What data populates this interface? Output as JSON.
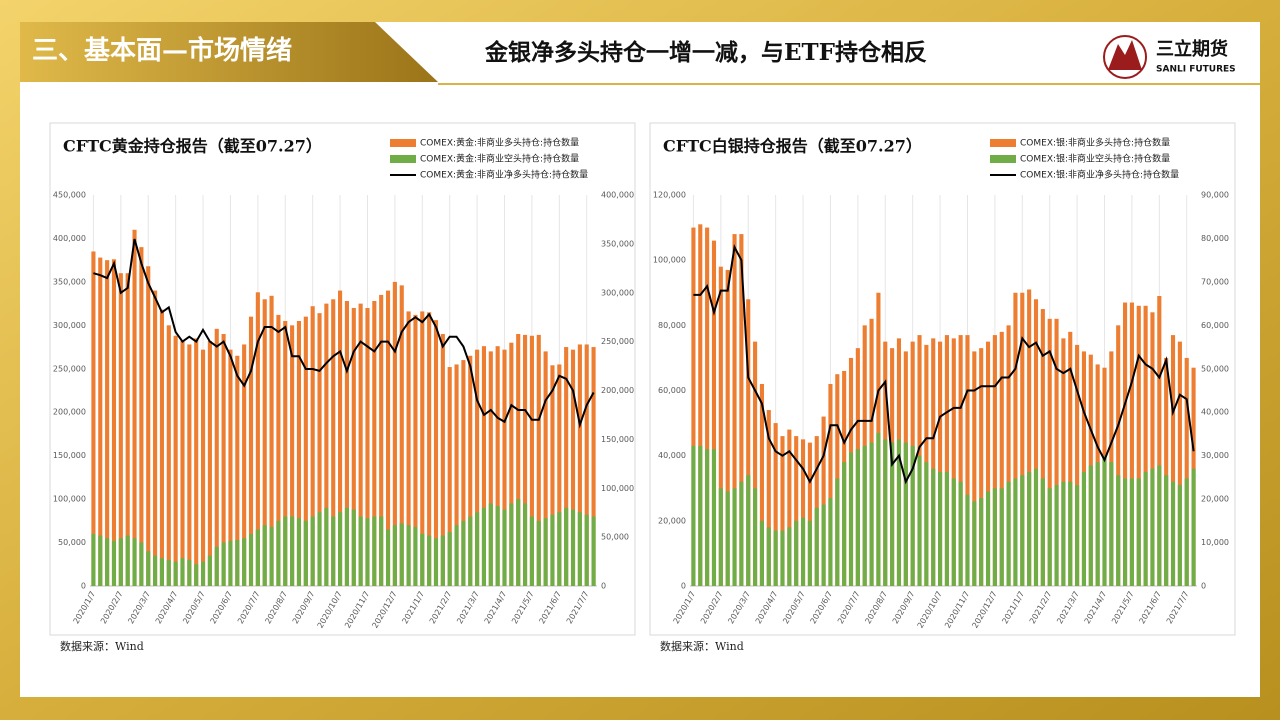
{
  "header": {
    "section": "三、基本面—市场情绪",
    "title": "金银净多头持仓一增一减，与ETF持仓相反",
    "logo": "三立期货",
    "logo_sub": "SANLI FUTURES"
  },
  "chart_data": [
    {
      "type": "bar",
      "title": "CFTC黄金持仓报告（截至07.27）",
      "note": "数据来源：Wind",
      "grid": "x",
      "categories": [
        "2020/1/7",
        null,
        null,
        null,
        "2020/2/7",
        null,
        null,
        null,
        "2020/3/7",
        null,
        null,
        null,
        "2020/4/7",
        null,
        null,
        null,
        "2020/5/7",
        null,
        null,
        null,
        "2020/6/7",
        null,
        null,
        null,
        "2020/7/7",
        null,
        null,
        null,
        "2020/8/7",
        null,
        null,
        null,
        "2020/9/7",
        null,
        null,
        null,
        "2020/10/7",
        null,
        null,
        null,
        "2020/11/7",
        null,
        null,
        null,
        "2020/12/7",
        null,
        null,
        null,
        "2021/1/7",
        null,
        null,
        null,
        "2021/2/7",
        null,
        null,
        null,
        "2021/3/7",
        null,
        null,
        null,
        "2021/4/7",
        null,
        null,
        null,
        "2021/5/7",
        null,
        null,
        null,
        "2021/6/7",
        null,
        null,
        null,
        "2021/7/7",
        null
      ],
      "ylim": [
        0,
        450000
      ],
      "yticks": [
        0,
        {
          "value": 50000,
          "label": "50,000"
        },
        {
          "value": 100000,
          "label": "100,000"
        },
        {
          "value": 150000,
          "label": "150,000"
        },
        {
          "value": 200000,
          "label": "200,000"
        },
        {
          "value": 250000,
          "label": "250,000"
        },
        {
          "value": 300000,
          "label": "300,000"
        },
        {
          "value": 350000,
          "label": "350,000"
        },
        {
          "value": 400000,
          "label": "400,000"
        },
        {
          "value": 450000,
          "label": "450,000"
        }
      ],
      "y2lim": [
        0,
        400000
      ],
      "y2ticks": [
        0,
        {
          "value": 50000,
          "label": "50,000"
        },
        {
          "value": 100000,
          "label": "100,000"
        },
        {
          "value": 150000,
          "label": "150,000"
        },
        {
          "value": 200000,
          "label": "200,000"
        },
        {
          "value": 250000,
          "label": "250,000"
        },
        {
          "value": 300000,
          "label": "300,000"
        },
        {
          "value": 350000,
          "label": "350,000"
        },
        {
          "value": 400000,
          "label": "400,000"
        }
      ],
      "series": [
        {
          "name": "COMEX:黄金:非商业多头持仓:持仓数量",
          "type": "bar",
          "color": "#ed7d31",
          "values": [
            385000,
            378000,
            375000,
            376000,
            360000,
            360000,
            410000,
            390000,
            368000,
            340000,
            318000,
            300000,
            288000,
            282000,
            278000,
            285000,
            272000,
            282000,
            296000,
            290000,
            272000,
            265000,
            278000,
            310000,
            338000,
            330000,
            334000,
            312000,
            305000,
            300000,
            305000,
            310000,
            322000,
            314000,
            325000,
            330000,
            340000,
            328000,
            320000,
            325000,
            320000,
            328000,
            335000,
            340000,
            350000,
            346000,
            316000,
            312000,
            316000,
            315000,
            306000,
            290000,
            252000,
            255000,
            260000,
            265000,
            272000,
            276000,
            270000,
            276000,
            272000,
            280000,
            290000,
            289000,
            288000,
            289000,
            270000,
            254000,
            255000,
            275000,
            272000,
            278000,
            278000,
            275000
          ]
        },
        {
          "name": "COMEX:黄金:非商业空头持仓:持仓数量",
          "type": "bar",
          "color": "#70ad47",
          "values": [
            60000,
            58000,
            55000,
            52000,
            55000,
            58000,
            55000,
            50000,
            40000,
            35000,
            32000,
            30000,
            28000,
            32000,
            30000,
            25000,
            28000,
            35000,
            45000,
            50000,
            52000,
            53000,
            55000,
            60000,
            65000,
            70000,
            68000,
            75000,
            80000,
            80000,
            78000,
            75000,
            80000,
            85000,
            90000,
            80000,
            85000,
            90000,
            88000,
            80000,
            78000,
            80000,
            80000,
            65000,
            70000,
            72000,
            70000,
            68000,
            60000,
            58000,
            55000,
            58000,
            62000,
            70000,
            75000,
            80000,
            85000,
            90000,
            95000,
            92000,
            88000,
            95000,
            100000,
            95000,
            80000,
            75000,
            78000,
            82000,
            85000,
            90000,
            88000,
            85000,
            82000,
            80000
          ]
        },
        {
          "name": "COMEX:黄金:非商业净多头持仓:持仓数量",
          "type": "line",
          "axis": "y2",
          "color": "#000000",
          "values": [
            320000,
            318000,
            315000,
            330000,
            300000,
            305000,
            355000,
            330000,
            310000,
            295000,
            280000,
            285000,
            260000,
            250000,
            255000,
            250000,
            262000,
            250000,
            245000,
            250000,
            235000,
            215000,
            205000,
            220000,
            250000,
            265000,
            265000,
            260000,
            265000,
            235000,
            235000,
            222000,
            222000,
            220000,
            228000,
            235000,
            240000,
            220000,
            240000,
            250000,
            245000,
            240000,
            250000,
            250000,
            240000,
            260000,
            270000,
            275000,
            270000,
            278000,
            265000,
            245000,
            255000,
            255000,
            245000,
            225000,
            190000,
            175000,
            180000,
            172000,
            168000,
            185000,
            180000,
            180000,
            170000,
            170000,
            190000,
            200000,
            215000,
            212000,
            200000,
            165000,
            185000,
            198000
          ]
        }
      ]
    },
    {
      "type": "bar",
      "title": "CFTC白银持仓报告（截至07.27）",
      "note": "数据来源：Wind",
      "grid": "x",
      "categories": [
        "2020/1/7",
        null,
        null,
        null,
        "2020/2/7",
        null,
        null,
        null,
        "2020/3/7",
        null,
        null,
        null,
        "2020/4/7",
        null,
        null,
        null,
        "2020/5/7",
        null,
        null,
        null,
        "2020/6/7",
        null,
        null,
        null,
        "2020/7/7",
        null,
        null,
        null,
        "2020/8/7",
        null,
        null,
        null,
        "2020/9/7",
        null,
        null,
        null,
        "2020/10/7",
        null,
        null,
        null,
        "2020/11/7",
        null,
        null,
        null,
        "2020/12/7",
        null,
        null,
        null,
        "2021/1/7",
        null,
        null,
        null,
        "2021/2/7",
        null,
        null,
        null,
        "2021/3/7",
        null,
        null,
        null,
        "2021/4/7",
        null,
        null,
        null,
        "2021/5/7",
        null,
        null,
        null,
        "2021/6/7",
        null,
        null,
        null,
        "2021/7/7",
        null
      ],
      "ylim": [
        0,
        120000
      ],
      "yticks": [
        0,
        {
          "value": 20000,
          "label": "20,000"
        },
        {
          "value": 40000,
          "label": "40,000"
        },
        {
          "value": 60000,
          "label": "60,000"
        },
        {
          "value": 80000,
          "label": "80,000"
        },
        {
          "value": 100000,
          "label": "100,000"
        },
        {
          "value": 120000,
          "label": "120,000"
        }
      ],
      "y2lim": [
        0,
        90000
      ],
      "y2ticks": [
        0,
        {
          "value": 10000,
          "label": "10,000"
        },
        {
          "value": 20000,
          "label": "20,000"
        },
        {
          "value": 30000,
          "label": "30,000"
        },
        {
          "value": 40000,
          "label": "40,000"
        },
        {
          "value": 50000,
          "label": "50,000"
        },
        {
          "value": 60000,
          "label": "60,000"
        },
        {
          "value": 70000,
          "label": "70,000"
        },
        {
          "value": 80000,
          "label": "80,000"
        },
        {
          "value": 90000,
          "label": "90,000"
        }
      ],
      "series": [
        {
          "name": "COMEX:银:非商业多头持仓:持仓数量",
          "type": "bar",
          "color": "#ed7d31",
          "values": [
            110000,
            111000,
            110000,
            106000,
            98000,
            97000,
            108000,
            108000,
            88000,
            75000,
            62000,
            54000,
            50000,
            46000,
            48000,
            46000,
            45000,
            44000,
            46000,
            52000,
            62000,
            65000,
            66000,
            70000,
            73000,
            80000,
            82000,
            90000,
            75000,
            73000,
            76000,
            72000,
            75000,
            77000,
            74000,
            76000,
            75000,
            77000,
            76000,
            77000,
            77000,
            72000,
            73000,
            75000,
            77000,
            78000,
            80000,
            90000,
            90000,
            91000,
            88000,
            85000,
            82000,
            82000,
            76000,
            78000,
            74000,
            72000,
            71000,
            68000,
            67000,
            72000,
            80000,
            87000,
            87000,
            86000,
            86000,
            84000,
            89000,
            70000,
            77000,
            75000,
            70000,
            67000
          ]
        },
        {
          "name": "COMEX:银:非商业空头持仓:持仓数量",
          "type": "bar",
          "color": "#70ad47",
          "values": [
            43000,
            43000,
            42000,
            42000,
            30000,
            29000,
            30000,
            32000,
            34000,
            30000,
            20000,
            18000,
            17000,
            17000,
            18000,
            20000,
            21000,
            20000,
            24000,
            25000,
            27000,
            33000,
            38000,
            41000,
            42000,
            43000,
            44000,
            47000,
            45000,
            44000,
            45000,
            44000,
            43000,
            40000,
            38000,
            36000,
            35000,
            35000,
            33000,
            32000,
            28000,
            26000,
            27000,
            29000,
            30000,
            30000,
            32000,
            33000,
            34000,
            35000,
            36000,
            33000,
            30000,
            31000,
            32000,
            32000,
            31000,
            35000,
            37000,
            38000,
            40000,
            38000,
            34000,
            33000,
            33000,
            33000,
            35000,
            36000,
            37000,
            34000,
            32000,
            31000,
            33000,
            36000
          ]
        },
        {
          "name": "COMEX:银:非商业净多头持仓:持仓数量",
          "type": "line",
          "axis": "y2",
          "color": "#000000",
          "values": [
            67000,
            67000,
            69000,
            63000,
            68000,
            68000,
            78000,
            75000,
            48000,
            45000,
            42000,
            34000,
            31000,
            30000,
            31000,
            29000,
            27000,
            24000,
            27000,
            30000,
            37000,
            37000,
            33000,
            36000,
            38000,
            38000,
            38000,
            45000,
            47000,
            28000,
            30000,
            24000,
            27000,
            32000,
            34000,
            34000,
            39000,
            40000,
            41000,
            41000,
            45000,
            45000,
            46000,
            46000,
            46000,
            48000,
            48000,
            50000,
            57000,
            55000,
            56000,
            53000,
            54000,
            50000,
            49000,
            50000,
            45000,
            40000,
            36000,
            32000,
            29000,
            33000,
            37000,
            42000,
            47000,
            53000,
            51000,
            50000,
            48000,
            52000,
            40000,
            44000,
            43000,
            31000
          ]
        }
      ]
    }
  ]
}
